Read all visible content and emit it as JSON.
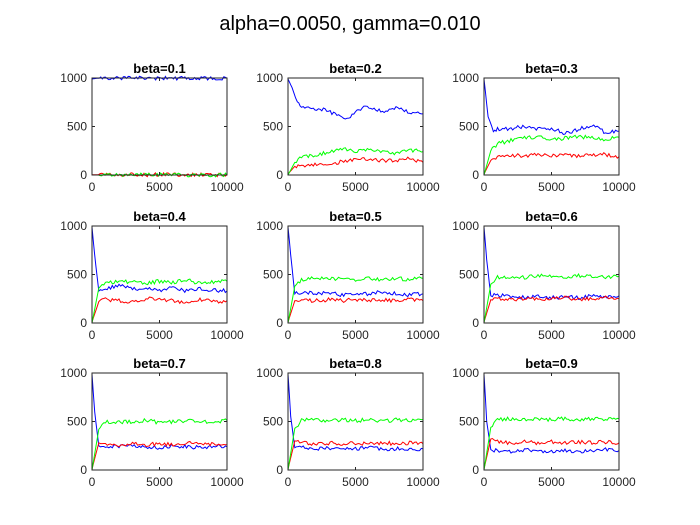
{
  "figure": {
    "title": "alpha=0.0050, gamma=0.010"
  },
  "chart_data": [
    {
      "type": "line",
      "title": "beta=0.1",
      "xlim": [
        0,
        10000
      ],
      "ylim": [
        0,
        1000
      ],
      "xticks": [
        0,
        5000,
        10000
      ],
      "yticks": [
        0,
        500,
        1000
      ],
      "series": [
        {
          "color": "#0000ff",
          "x": [
            0,
            300,
            1000,
            10000
          ],
          "y": [
            990,
            996,
            999,
            999
          ]
        },
        {
          "color": "#ff0000",
          "x": [
            0,
            10000
          ],
          "y": [
            3,
            3
          ]
        },
        {
          "color": "#00ff00",
          "x": [
            0,
            10000
          ],
          "y": [
            0,
            0
          ]
        }
      ]
    },
    {
      "type": "line",
      "title": "beta=0.2",
      "xlim": [
        0,
        10000
      ],
      "ylim": [
        0,
        1000
      ],
      "xticks": [
        0,
        5000,
        10000
      ],
      "yticks": [
        0,
        500,
        1000
      ],
      "series": [
        {
          "color": "#0000ff",
          "x": [
            0,
            300,
            700,
            1000,
            2000,
            3000,
            3500,
            4000,
            4500,
            5000,
            5500,
            6000,
            7000,
            8000,
            9000,
            10000
          ],
          "y": [
            990,
            900,
            740,
            700,
            690,
            660,
            620,
            590,
            600,
            640,
            700,
            690,
            660,
            690,
            650,
            630
          ]
        },
        {
          "color": "#ff0000",
          "x": [
            0,
            500,
            1000,
            2000,
            3000,
            4000,
            5000,
            6000,
            7000,
            8000,
            9000,
            10000
          ],
          "y": [
            10,
            90,
            100,
            110,
            100,
            140,
            160,
            160,
            150,
            150,
            170,
            130
          ]
        },
        {
          "color": "#00ff00",
          "x": [
            0,
            500,
            1000,
            2000,
            3000,
            4000,
            5000,
            6000,
            7000,
            8000,
            9000,
            10000
          ],
          "y": [
            0,
            130,
            180,
            200,
            240,
            270,
            250,
            270,
            240,
            220,
            260,
            240
          ]
        }
      ]
    },
    {
      "type": "line",
      "title": "beta=0.3",
      "xlim": [
        0,
        10000
      ],
      "ylim": [
        0,
        1000
      ],
      "xticks": [
        0,
        5000,
        10000
      ],
      "yticks": [
        0,
        500,
        1000
      ],
      "series": [
        {
          "color": "#0000ff",
          "x": [
            0,
            300,
            700,
            1000,
            2000,
            3000,
            4000,
            5000,
            6000,
            7000,
            8000,
            9000,
            10000
          ],
          "y": [
            990,
            600,
            460,
            470,
            480,
            500,
            470,
            480,
            430,
            470,
            510,
            440,
            450
          ]
        },
        {
          "color": "#ff0000",
          "x": [
            0,
            500,
            1000,
            2000,
            3000,
            4000,
            5000,
            6000,
            7000,
            8000,
            9000,
            10000
          ],
          "y": [
            10,
            150,
            180,
            200,
            200,
            210,
            200,
            220,
            190,
            210,
            210,
            190
          ]
        },
        {
          "color": "#00ff00",
          "x": [
            0,
            500,
            1000,
            2000,
            3000,
            4000,
            5000,
            6000,
            7000,
            8000,
            9000,
            10000
          ],
          "y": [
            0,
            250,
            320,
            360,
            380,
            390,
            360,
            380,
            400,
            380,
            370,
            390
          ]
        }
      ]
    },
    {
      "type": "line",
      "title": "beta=0.4",
      "xlim": [
        0,
        10000
      ],
      "ylim": [
        0,
        1000
      ],
      "xticks": [
        0,
        5000,
        10000
      ],
      "yticks": [
        0,
        500,
        1000
      ],
      "series": [
        {
          "color": "#0000ff",
          "x": [
            0,
            200,
            500,
            1000,
            2000,
            3000,
            4000,
            5000,
            6000,
            7000,
            8000,
            9000,
            10000
          ],
          "y": [
            990,
            700,
            330,
            360,
            380,
            360,
            350,
            340,
            360,
            330,
            350,
            340,
            330
          ]
        },
        {
          "color": "#ff0000",
          "x": [
            0,
            500,
            1000,
            2000,
            3000,
            4000,
            5000,
            6000,
            7000,
            8000,
            9000,
            10000
          ],
          "y": [
            10,
            220,
            240,
            230,
            220,
            250,
            240,
            230,
            210,
            240,
            220,
            230
          ]
        },
        {
          "color": "#00ff00",
          "x": [
            0,
            500,
            1000,
            2000,
            3000,
            4000,
            5000,
            6000,
            7000,
            8000,
            9000,
            10000
          ],
          "y": [
            0,
            360,
            430,
            420,
            430,
            410,
            430,
            420,
            440,
            410,
            420,
            430
          ]
        }
      ]
    },
    {
      "type": "line",
      "title": "beta=0.5",
      "xlim": [
        0,
        10000
      ],
      "ylim": [
        0,
        1000
      ],
      "xticks": [
        0,
        5000,
        10000
      ],
      "yticks": [
        0,
        500,
        1000
      ],
      "series": [
        {
          "color": "#0000ff",
          "x": [
            0,
            200,
            500,
            1000,
            2000,
            3000,
            4000,
            5000,
            6000,
            7000,
            8000,
            9000,
            10000
          ],
          "y": [
            990,
            700,
            300,
            320,
            300,
            310,
            290,
            310,
            300,
            320,
            300,
            290,
            300
          ]
        },
        {
          "color": "#ff0000",
          "x": [
            0,
            500,
            1000,
            2000,
            3000,
            4000,
            5000,
            6000,
            7000,
            8000,
            9000,
            10000
          ],
          "y": [
            10,
            230,
            240,
            230,
            240,
            230,
            240,
            230,
            240,
            230,
            240,
            230
          ]
        },
        {
          "color": "#00ff00",
          "x": [
            0,
            500,
            1000,
            2000,
            3000,
            4000,
            5000,
            6000,
            7000,
            8000,
            9000,
            10000
          ],
          "y": [
            0,
            380,
            450,
            460,
            450,
            460,
            450,
            460,
            440,
            460,
            450,
            460
          ]
        }
      ]
    },
    {
      "type": "line",
      "title": "beta=0.6",
      "xlim": [
        0,
        10000
      ],
      "ylim": [
        0,
        1000
      ],
      "xticks": [
        0,
        5000,
        10000
      ],
      "yticks": [
        0,
        500,
        1000
      ],
      "series": [
        {
          "color": "#0000ff",
          "x": [
            0,
            200,
            500,
            1000,
            2000,
            3000,
            4000,
            5000,
            6000,
            7000,
            8000,
            9000,
            10000
          ],
          "y": [
            990,
            650,
            280,
            290,
            270,
            260,
            280,
            260,
            270,
            260,
            280,
            270,
            280
          ]
        },
        {
          "color": "#ff0000",
          "x": [
            0,
            500,
            1000,
            2000,
            3000,
            4000,
            5000,
            6000,
            7000,
            8000,
            9000,
            10000
          ],
          "y": [
            10,
            240,
            250,
            240,
            250,
            240,
            250,
            260,
            240,
            250,
            260,
            250
          ]
        },
        {
          "color": "#00ff00",
          "x": [
            0,
            500,
            1000,
            2000,
            3000,
            4000,
            5000,
            6000,
            7000,
            8000,
            9000,
            10000
          ],
          "y": [
            0,
            400,
            470,
            480,
            470,
            490,
            480,
            470,
            490,
            480,
            470,
            480
          ]
        }
      ]
    },
    {
      "type": "line",
      "title": "beta=0.7",
      "xlim": [
        0,
        10000
      ],
      "ylim": [
        0,
        1000
      ],
      "xticks": [
        0,
        5000,
        10000
      ],
      "yticks": [
        0,
        500,
        1000
      ],
      "series": [
        {
          "color": "#0000ff",
          "x": [
            0,
            200,
            500,
            1000,
            2000,
            3000,
            4000,
            5000,
            6000,
            7000,
            8000,
            9000,
            10000
          ],
          "y": [
            990,
            600,
            250,
            250,
            240,
            250,
            240,
            230,
            250,
            240,
            230,
            250,
            240
          ]
        },
        {
          "color": "#ff0000",
          "x": [
            0,
            500,
            1000,
            2000,
            3000,
            4000,
            5000,
            6000,
            7000,
            8000,
            9000,
            10000
          ],
          "y": [
            10,
            280,
            270,
            260,
            270,
            260,
            270,
            260,
            280,
            260,
            270,
            260
          ]
        },
        {
          "color": "#00ff00",
          "x": [
            0,
            500,
            1000,
            2000,
            3000,
            4000,
            5000,
            6000,
            7000,
            8000,
            9000,
            10000
          ],
          "y": [
            0,
            420,
            500,
            490,
            500,
            510,
            490,
            500,
            510,
            490,
            500,
            510
          ]
        }
      ]
    },
    {
      "type": "line",
      "title": "beta=0.8",
      "xlim": [
        0,
        10000
      ],
      "ylim": [
        0,
        1000
      ],
      "xticks": [
        0,
        5000,
        10000
      ],
      "yticks": [
        0,
        500,
        1000
      ],
      "series": [
        {
          "color": "#0000ff",
          "x": [
            0,
            200,
            500,
            1000,
            2000,
            3000,
            4000,
            5000,
            6000,
            7000,
            8000,
            9000,
            10000
          ],
          "y": [
            990,
            550,
            230,
            230,
            220,
            230,
            210,
            220,
            230,
            210,
            220,
            210,
            220
          ]
        },
        {
          "color": "#ff0000",
          "x": [
            0,
            500,
            1000,
            2000,
            3000,
            4000,
            5000,
            6000,
            7000,
            8000,
            9000,
            10000
          ],
          "y": [
            10,
            300,
            280,
            270,
            280,
            270,
            280,
            270,
            280,
            270,
            280,
            270
          ]
        },
        {
          "color": "#00ff00",
          "x": [
            0,
            500,
            1000,
            2000,
            3000,
            4000,
            5000,
            6000,
            7000,
            8000,
            9000,
            10000
          ],
          "y": [
            0,
            430,
            510,
            520,
            510,
            520,
            510,
            520,
            500,
            520,
            510,
            520
          ]
        }
      ]
    },
    {
      "type": "line",
      "title": "beta=0.9",
      "xlim": [
        0,
        10000
      ],
      "ylim": [
        0,
        1000
      ],
      "xticks": [
        0,
        5000,
        10000
      ],
      "yticks": [
        0,
        500,
        1000
      ],
      "series": [
        {
          "color": "#0000ff",
          "x": [
            0,
            200,
            500,
            1000,
            2000,
            3000,
            4000,
            5000,
            6000,
            7000,
            8000,
            9000,
            10000
          ],
          "y": [
            990,
            500,
            210,
            200,
            190,
            210,
            200,
            190,
            200,
            190,
            200,
            210,
            200
          ]
        },
        {
          "color": "#ff0000",
          "x": [
            0,
            500,
            1000,
            2000,
            3000,
            4000,
            5000,
            6000,
            7000,
            8000,
            9000,
            10000
          ],
          "y": [
            10,
            320,
            290,
            280,
            290,
            280,
            290,
            280,
            290,
            280,
            290,
            280
          ]
        },
        {
          "color": "#00ff00",
          "x": [
            0,
            500,
            1000,
            2000,
            3000,
            4000,
            5000,
            6000,
            7000,
            8000,
            9000,
            10000
          ],
          "y": [
            0,
            440,
            520,
            530,
            520,
            530,
            520,
            530,
            510,
            530,
            520,
            530
          ]
        }
      ]
    }
  ]
}
